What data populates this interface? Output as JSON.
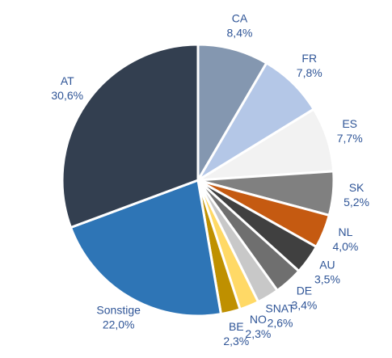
{
  "chart_data": {
    "type": "pie",
    "categories": [
      "CA",
      "FR",
      "ES",
      "SK",
      "NL",
      "AU",
      "DE",
      "SNAT",
      "NO",
      "BE",
      "Sonstige",
      "AT"
    ],
    "values": [
      8.4,
      7.8,
      7.7,
      5.2,
      4.0,
      3.5,
      3.4,
      2.6,
      2.3,
      2.3,
      22.0,
      30.6
    ],
    "value_labels": [
      "8,4%",
      "7,8%",
      "7,7%",
      "5,2%",
      "4,0%",
      "3,5%",
      "3,4%",
      "2,6%",
      "2,3%",
      "2,3%",
      "22,0%",
      "30,6%"
    ],
    "colors": [
      "#8497b0",
      "#b4c7e7",
      "#f2f2f2",
      "#808080",
      "#c55a11",
      "#404040",
      "#6f6f6f",
      "#c8c8c8",
      "#ffd966",
      "#bf9000",
      "#2e75b6",
      "#333f50"
    ]
  }
}
